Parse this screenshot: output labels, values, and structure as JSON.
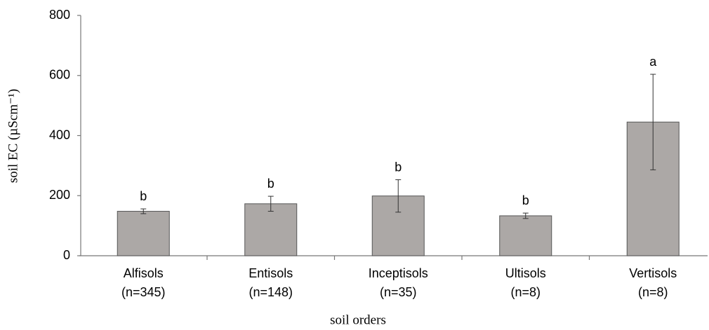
{
  "chart_data": {
    "type": "bar",
    "xlabel": "soil orders",
    "ylabel": "soil EC (µScm⁻¹)",
    "categories": [
      [
        "Alfisols",
        "(n=345)"
      ],
      [
        "Entisols",
        "(n=148)"
      ],
      [
        "Inceptisols",
        "(n=35)"
      ],
      [
        "Ultisols",
        "(n=8)"
      ],
      [
        "Vertisols",
        "(n=8)"
      ]
    ],
    "values": [
      148,
      173,
      199,
      133,
      445
    ],
    "errors": [
      8,
      25,
      54,
      9,
      159
    ],
    "annotations": [
      "b",
      "b",
      "b",
      "b",
      "a"
    ],
    "color": "#aca8a6",
    "ylim": [
      0,
      800
    ],
    "yticks": [
      0,
      200,
      400,
      600,
      800
    ],
    "grid": false
  }
}
